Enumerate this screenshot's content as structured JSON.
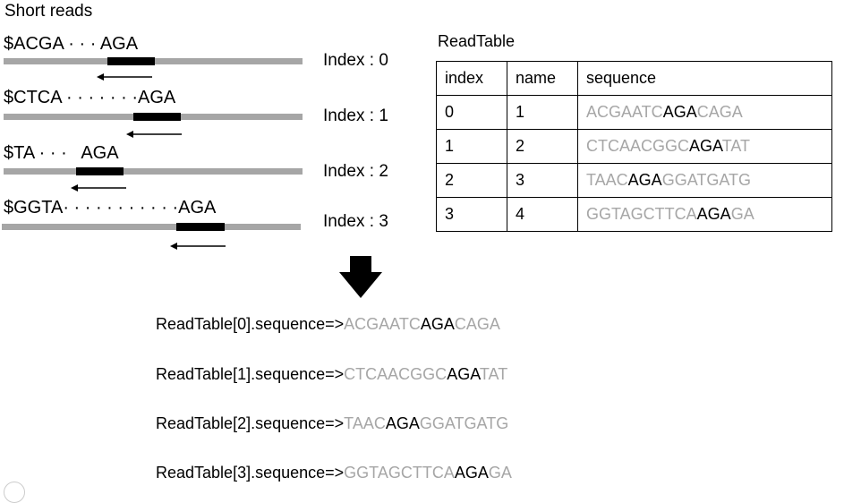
{
  "title": "Short reads",
  "reads": [
    {
      "prefix": "$ACGA",
      "dots": " · · · ",
      "motif": "AGA",
      "index_label": "Index : 0"
    },
    {
      "prefix": "$CTCA",
      "dots": " · · · · · · ·",
      "motif": "AGA",
      "index_label": "Index : 1"
    },
    {
      "prefix": "$TA",
      "dots": " · · ·   ",
      "motif": "AGA",
      "index_label": "Index : 2"
    },
    {
      "prefix": "$GGTA",
      "dots": "· · · · · · · · · · ·",
      "motif": "AGA",
      "index_label": "Index : 3"
    }
  ],
  "table": {
    "title": "ReadTable",
    "headers": [
      "index",
      "name",
      "sequence"
    ],
    "rows": [
      {
        "index": "0",
        "name": "1",
        "seq": [
          {
            "t": "ACGAATC",
            "hl": false
          },
          {
            "t": "AGA",
            "hl": true
          },
          {
            "t": "CAGA",
            "hl": false
          }
        ]
      },
      {
        "index": "1",
        "name": "2",
        "seq": [
          {
            "t": "CTCAACGGC",
            "hl": false
          },
          {
            "t": "AGA",
            "hl": true
          },
          {
            "t": "TAT",
            "hl": false
          }
        ]
      },
      {
        "index": "2",
        "name": "3",
        "seq": [
          {
            "t": "TAAC",
            "hl": false
          },
          {
            "t": "AGA",
            "hl": true
          },
          {
            "t": "GGATGATG",
            "hl": false
          }
        ]
      },
      {
        "index": "3",
        "name": "4",
        "seq": [
          {
            "t": "GGTAGCTTCA",
            "hl": false
          },
          {
            "t": "AGA",
            "hl": true
          },
          {
            "t": "GA",
            "hl": false
          }
        ]
      }
    ]
  },
  "results": [
    {
      "prefix": "ReadTable[0].sequence=>",
      "seq": [
        {
          "t": "ACGAATC",
          "hl": false
        },
        {
          "t": "AGA",
          "hl": true
        },
        {
          "t": "CAGA",
          "hl": false
        }
      ]
    },
    {
      "prefix": "ReadTable[1].sequence=>",
      "seq": [
        {
          "t": "CTCAACGGC",
          "hl": false
        },
        {
          "t": "AGA",
          "hl": true
        },
        {
          "t": "TAT",
          "hl": false
        }
      ]
    },
    {
      "prefix": "ReadTable[2].sequence=>",
      "seq": [
        {
          "t": "TAAC",
          "hl": false
        },
        {
          "t": "AGA",
          "hl": true
        },
        {
          "t": "GGATGATG",
          "hl": false
        }
      ]
    },
    {
      "prefix": "ReadTable[3].sequence=>",
      "seq": [
        {
          "t": "GGTAGCTTCA",
          "hl": false
        },
        {
          "t": "AGA",
          "hl": true
        },
        {
          "t": "GA",
          "hl": false
        }
      ]
    }
  ],
  "colors": {
    "muted": "#a6a6a6",
    "highlight": "#000000",
    "bar": "#a6a6a6"
  }
}
